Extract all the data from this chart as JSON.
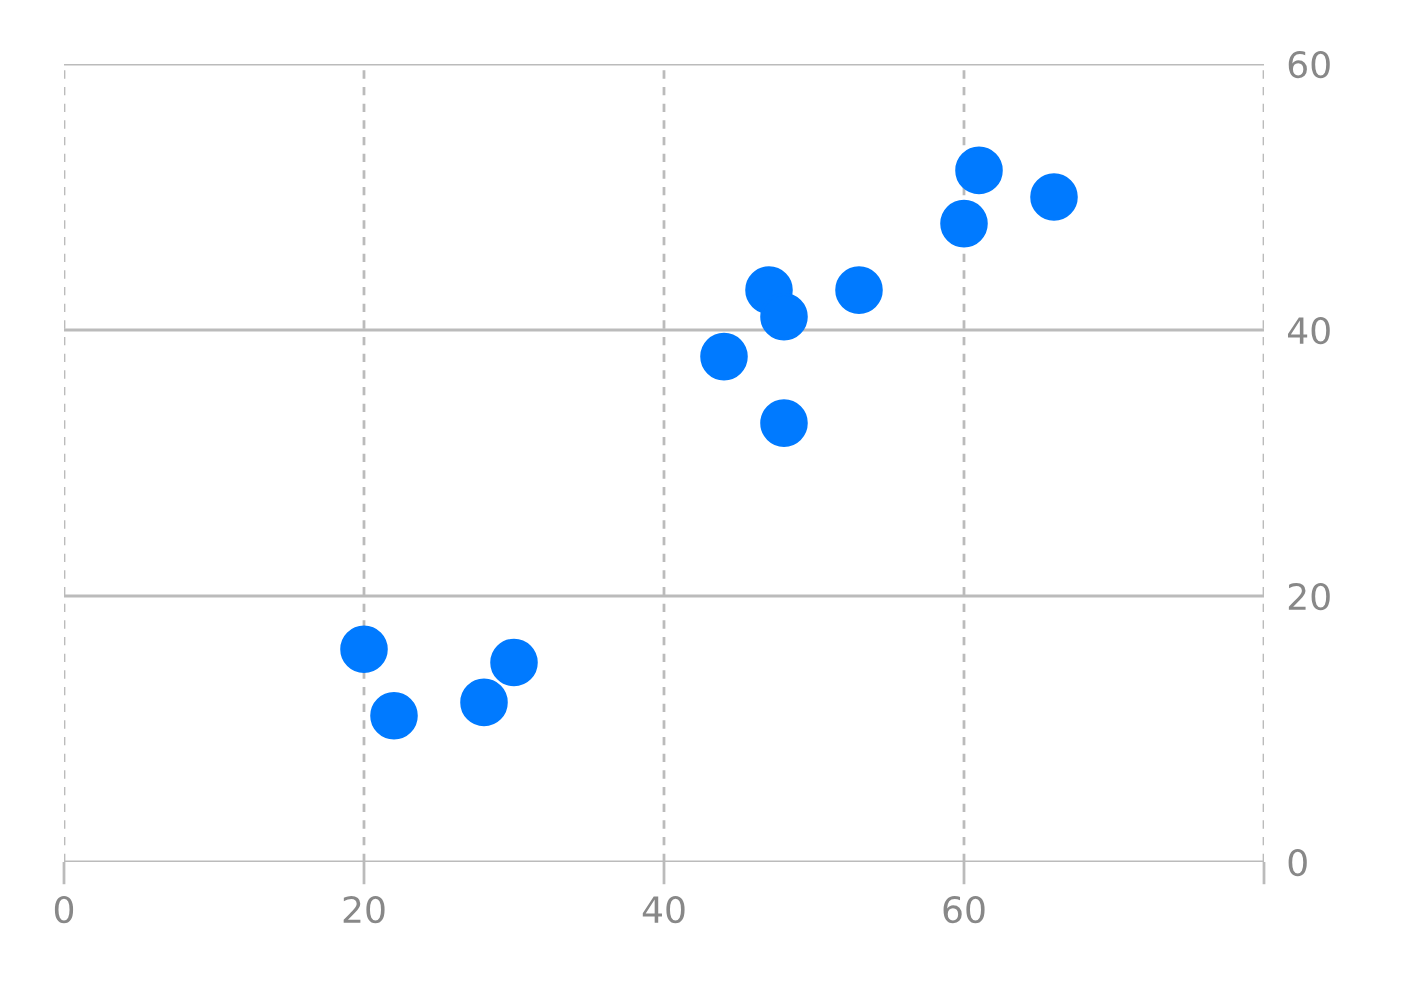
{
  "chart_data": {
    "type": "scatter",
    "x": [
      20,
      22,
      28,
      30,
      44,
      47,
      48,
      48,
      53,
      60,
      61,
      66
    ],
    "series": [
      {
        "color": "#007aff",
        "values": [
          16,
          11,
          12,
          15,
          38,
          43,
          41,
          33,
          43,
          48,
          52,
          50
        ]
      }
    ],
    "xlim": [
      0,
      80
    ],
    "xticks": [
      0,
      20,
      40,
      60,
      {
        "value": 80,
        "label": null
      }
    ],
    "ylim": [
      0,
      60
    ],
    "yticks": [
      0,
      20,
      40,
      60
    ],
    "grid": true,
    "marker": "circle"
  }
}
